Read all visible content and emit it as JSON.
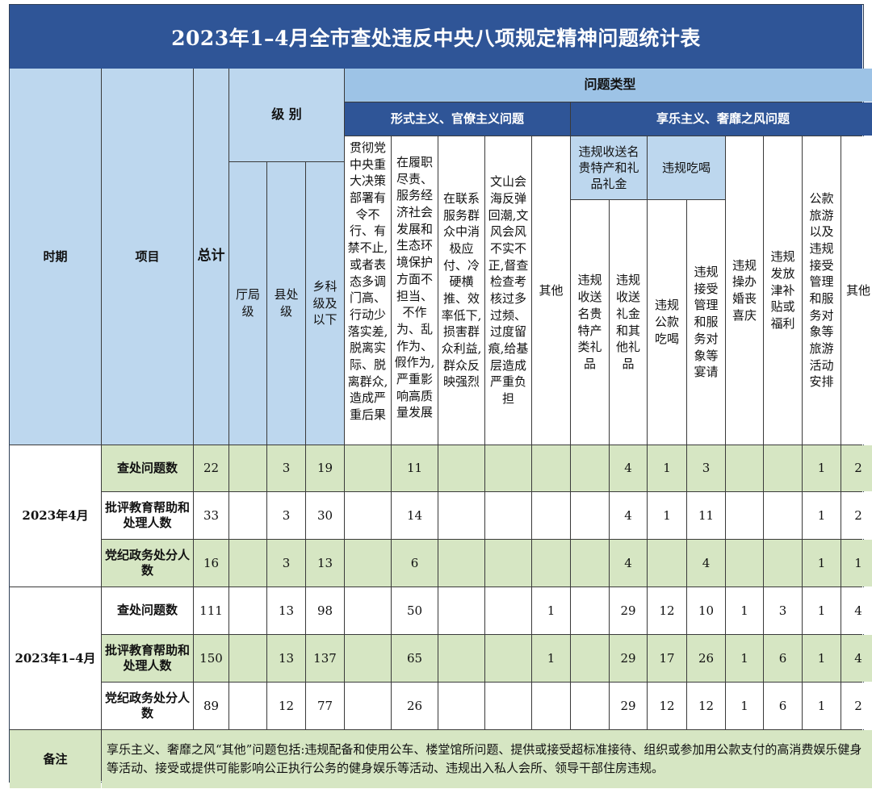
{
  "title": "2023年1–4月全市查处违反中央八项规定精神问题统计表",
  "header": {
    "period": "时期",
    "item": "项目",
    "total": "总计",
    "level": "级 别",
    "level_cols": [
      "厅局级",
      "县处级",
      "乡科级及以下"
    ],
    "problem_type": "问题类型",
    "formalism": "形式主义、官僚主义问题",
    "hedonism": "享乐主义、奢靡之风问题",
    "formalism_cols": [
      "贯彻党中央重大决策部署有令不行、有禁不止,或者表态多调门高、行动少落实差,脱离实际、脱离群众,造成严重后果",
      "在履职尽责、服务经济社会发展和生态环境保护方面不担当、不作为、乱作为、假作为,严重影响高质量发展",
      "在联系服务群众中消极应付、冷硬横推、效率低下,损害群众利益,群众反映强烈",
      "文山会海反弹回潮,文风会风不实不正,督查检查考核过多过频、过度留痕,给基层造成严重负担",
      "其他"
    ],
    "gift_group": "违规收送名贵特产和礼品礼金",
    "gift_cols": [
      "违规收送名贵特产类礼品",
      "违规收送礼金和其他礼品"
    ],
    "dining_group": "违规吃喝",
    "dining_cols": [
      "违规公款吃喝",
      "违规接受管理和服务对象等宴请"
    ],
    "other_hedonism_cols": [
      "违规操办婚丧喜庆",
      "违规发放津补贴或福利",
      "公款旅游以及违规接受管理和服务对象等旅游活动安排",
      "其他"
    ]
  },
  "rows": [
    {
      "period": "2023年4月",
      "item": "查处问题数",
      "values": [
        "22",
        "",
        "3",
        "19",
        "",
        "11",
        "",
        "",
        "",
        "",
        "4",
        "1",
        "3",
        "",
        "",
        "1",
        "2"
      ]
    },
    {
      "period": "2023年4月",
      "item": "批评教育帮助和处理人数",
      "values": [
        "33",
        "",
        "3",
        "30",
        "",
        "14",
        "",
        "",
        "",
        "",
        "4",
        "1",
        "11",
        "",
        "",
        "1",
        "2"
      ]
    },
    {
      "period": "2023年4月",
      "item": "党纪政务处分人数",
      "values": [
        "16",
        "",
        "3",
        "13",
        "",
        "6",
        "",
        "",
        "",
        "",
        "4",
        "",
        "4",
        "",
        "",
        "1",
        "1"
      ]
    },
    {
      "period": "2023年1–4月",
      "item": "查处问题数",
      "values": [
        "111",
        "",
        "13",
        "98",
        "",
        "50",
        "",
        "",
        "1",
        "",
        "29",
        "12",
        "10",
        "1",
        "3",
        "1",
        "4"
      ]
    },
    {
      "period": "2023年1–4月",
      "item": "批评教育帮助和处理人数",
      "values": [
        "150",
        "",
        "13",
        "137",
        "",
        "65",
        "",
        "",
        "1",
        "",
        "29",
        "17",
        "26",
        "1",
        "6",
        "1",
        "4"
      ]
    },
    {
      "period": "2023年1–4月",
      "item": "党纪政务处分人数",
      "values": [
        "89",
        "",
        "12",
        "77",
        "",
        "26",
        "",
        "",
        "",
        "",
        "29",
        "12",
        "12",
        "1",
        "6",
        "1",
        "2"
      ]
    }
  ],
  "periods": [
    "2023年4月",
    "2023年1–4月"
  ],
  "note_label": "备注",
  "note_text": "享乐主义、奢靡之风“其他”问题包括:违规配备和使用公车、楼堂馆所问题、提供或接受超标准接待、组织或参加用公款支付的高消费娱乐健身等活动、接受或提供可能影响公正执行公务的健身娱乐等活动、违规出入私人会所、领导干部住房违规。",
  "colors": {
    "title_bg": "#2f5597",
    "light_blue": "#bdd7ee",
    "mid_blue": "#9dc3e6",
    "green": "#d6e6c3"
  }
}
